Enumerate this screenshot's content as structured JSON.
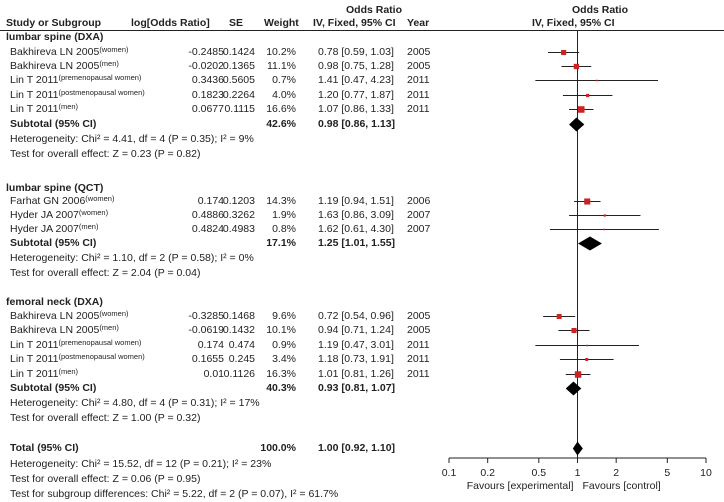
{
  "headers": {
    "study": "Study or Subgroup",
    "logor": "log[Odds Ratio]",
    "se": "SE",
    "weight": "Weight",
    "or_top": "Odds Ratio",
    "or_sub": "IV, Fixed, 95% CI",
    "year": "Year",
    "plot_top": "Odds Ratio",
    "plot_sub": "IV, Fixed, 95% CI"
  },
  "groups": [
    {
      "name": "lumbar spine (DXA)",
      "rows": [
        {
          "study": "Bakhireva LN 2005",
          "sub": "(women)",
          "logor": "-0.2485",
          "se": "0.1424",
          "weight": "10.2%",
          "ci": "0.78 [0.59, 1.03]",
          "year": "2005"
        },
        {
          "study": "Bakhireva LN 2005",
          "sub": "(men)",
          "logor": "-0.0202",
          "se": "0.1365",
          "weight": "11.1%",
          "ci": "0.98 [0.75, 1.28]",
          "year": "2005"
        },
        {
          "study": "Lin T 2011",
          "sub": "(premenopausal women)",
          "logor": "0.3436",
          "se": "0.5605",
          "weight": "0.7%",
          "ci": "1.41 [0.47, 4.23]",
          "year": "2011"
        },
        {
          "study": "Lin T 2011",
          "sub": "(postmenopausal women)",
          "logor": "0.1823",
          "se": "0.2264",
          "weight": "4.0%",
          "ci": "1.20 [0.77, 1.87]",
          "year": "2011"
        },
        {
          "study": "Lin T 2011",
          "sub": "(men)",
          "logor": "0.0677",
          "se": "0.1115",
          "weight": "16.6%",
          "ci": "1.07 [0.86, 1.33]",
          "year": "2011"
        }
      ],
      "subtotal": {
        "label": "Subtotal (95% CI)",
        "weight": "42.6%",
        "ci": "0.98 [0.86, 1.13]"
      },
      "heterogeneity": "Heterogeneity: Chi² = 4.41, df = 4 (P = 0.35); I² = 9%",
      "overall": "Test for overall effect: Z = 0.23 (P = 0.82)"
    },
    {
      "name": "lumbar spine (QCT)",
      "rows": [
        {
          "study": "Farhat GN 2006",
          "sub": "(women)",
          "logor": "0.174",
          "se": "0.1203",
          "weight": "14.3%",
          "ci": "1.19 [0.94, 1.51]",
          "year": "2006"
        },
        {
          "study": "Hyder JA 2007",
          "sub": "(women)",
          "logor": "0.4886",
          "se": "0.3262",
          "weight": "1.9%",
          "ci": "1.63 [0.86, 3.09]",
          "year": "2007"
        },
        {
          "study": "Hyder JA 2007",
          "sub": "(men)",
          "logor": "0.4824",
          "se": "0.4983",
          "weight": "0.8%",
          "ci": "1.62 [0.61, 4.30]",
          "year": "2007"
        }
      ],
      "subtotal": {
        "label": "Subtotal (95% CI)",
        "weight": "17.1%",
        "ci": "1.25 [1.01, 1.55]"
      },
      "heterogeneity": "Heterogeneity: Chi² = 1.10, df = 2 (P = 0.58); I² = 0%",
      "overall": "Test for overall effect: Z = 2.04 (P = 0.04)"
    },
    {
      "name": "femoral neck (DXA)",
      "rows": [
        {
          "study": "Bakhireva LN 2005",
          "sub": "(women)",
          "logor": "-0.3285",
          "se": "0.1468",
          "weight": "9.6%",
          "ci": "0.72 [0.54, 0.96]",
          "year": "2005"
        },
        {
          "study": "Bakhireva LN 2005",
          "sub": "(men)",
          "logor": "-0.0619",
          "se": "0.1432",
          "weight": "10.1%",
          "ci": "0.94 [0.71, 1.24]",
          "year": "2005"
        },
        {
          "study": "Lin T 2011",
          "sub": "(premenopausal women)",
          "logor": "0.174",
          "se": "0.474",
          "weight": "0.9%",
          "ci": "1.19 [0.47, 3.01]",
          "year": "2011"
        },
        {
          "study": "Lin T 2011",
          "sub": "(postmenopausal women)",
          "logor": "0.1655",
          "se": "0.245",
          "weight": "3.4%",
          "ci": "1.18 [0.73, 1.91]",
          "year": "2011"
        },
        {
          "study": "Lin T 2011",
          "sub": "(men)",
          "logor": "0.01",
          "se": "0.1126",
          "weight": "16.3%",
          "ci": "1.01 [0.81, 1.26]",
          "year": "2011"
        }
      ],
      "subtotal": {
        "label": "Subtotal (95% CI)",
        "weight": "40.3%",
        "ci": "0.93 [0.81, 1.07]"
      },
      "heterogeneity": "Heterogeneity: Chi² = 4.80, df = 4 (P = 0.31); I² = 17%",
      "overall": "Test for overall effect: Z = 1.00 (P = 0.32)"
    }
  ],
  "total": {
    "label": "Total (95% CI)",
    "weight": "100.0%",
    "ci": "1.00 [0.92, 1.10]",
    "heterogeneity": "Heterogeneity: Chi² = 15.52, df = 12 (P = 0.21); I² = 23%",
    "overall": "Test for overall effect: Z = 0.06 (P = 0.95)",
    "subgroup": "Test for subgroup differences: Chi² = 5.22, df = 2 (P = 0.07), I² = 61.7%"
  },
  "chart_data": {
    "type": "forest",
    "scale": "log",
    "xlim": [
      0.1,
      10
    ],
    "ticks": [
      0.1,
      0.2,
      0.5,
      1,
      2,
      5,
      10
    ],
    "tick_labels": [
      "0.1",
      "0.2",
      "0.5",
      "1",
      "2",
      "5",
      "10"
    ],
    "xlabel_left": "Favours [experimental]",
    "xlabel_right": "Favours [control]",
    "studies": [
      {
        "or": 0.78,
        "lo": 0.59,
        "hi": 1.03,
        "weight": 10.2
      },
      {
        "or": 0.98,
        "lo": 0.75,
        "hi": 1.28,
        "weight": 11.1
      },
      {
        "or": 1.41,
        "lo": 0.47,
        "hi": 4.23,
        "weight": 0.7
      },
      {
        "or": 1.2,
        "lo": 0.77,
        "hi": 1.87,
        "weight": 4.0
      },
      {
        "or": 1.07,
        "lo": 0.86,
        "hi": 1.33,
        "weight": 16.6
      },
      {
        "or": 1.19,
        "lo": 0.94,
        "hi": 1.51,
        "weight": 14.3
      },
      {
        "or": 1.63,
        "lo": 0.86,
        "hi": 3.09,
        "weight": 1.9
      },
      {
        "or": 1.62,
        "lo": 0.61,
        "hi": 4.3,
        "weight": 0.8
      },
      {
        "or": 0.72,
        "lo": 0.54,
        "hi": 0.96,
        "weight": 9.6
      },
      {
        "or": 0.94,
        "lo": 0.71,
        "hi": 1.24,
        "weight": 10.1
      },
      {
        "or": 1.19,
        "lo": 0.47,
        "hi": 3.01,
        "weight": 0.9
      },
      {
        "or": 1.18,
        "lo": 0.73,
        "hi": 1.91,
        "weight": 3.4
      },
      {
        "or": 1.01,
        "lo": 0.81,
        "hi": 1.26,
        "weight": 16.3
      }
    ],
    "subtotals": [
      {
        "or": 0.98,
        "lo": 0.86,
        "hi": 1.13
      },
      {
        "or": 1.25,
        "lo": 1.01,
        "hi": 1.55
      },
      {
        "or": 0.93,
        "lo": 0.81,
        "hi": 1.07
      }
    ],
    "overall": {
      "or": 1.0,
      "lo": 0.92,
      "hi": 1.1
    },
    "colors": {
      "square": "#cc2222",
      "line": "#222222",
      "diamond": "#000000"
    }
  }
}
